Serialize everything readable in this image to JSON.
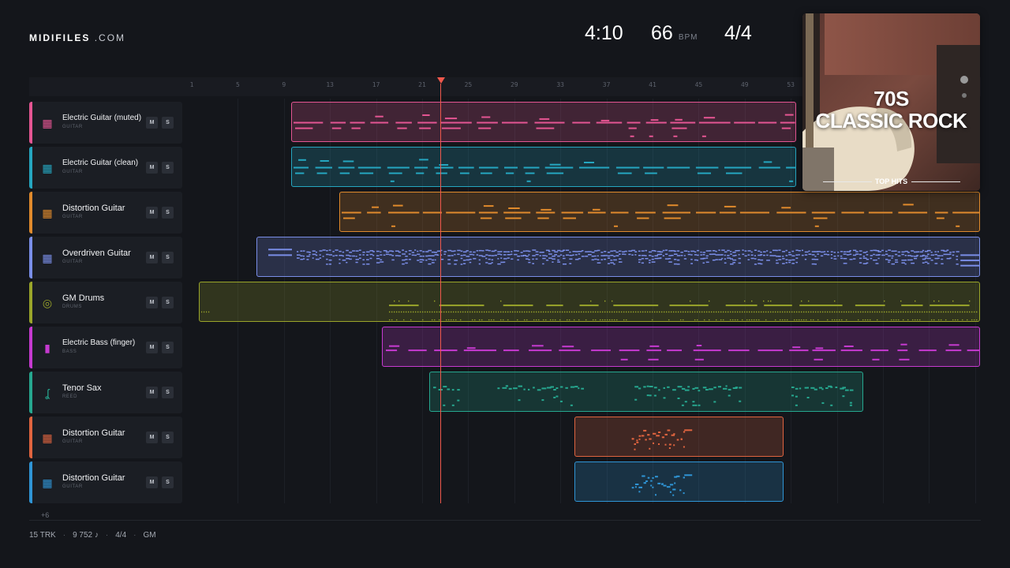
{
  "app": {
    "logo_bold": "MIDIFILES",
    "logo_suffix": ".COM"
  },
  "transport": {
    "time": "4:10",
    "tempo": "66",
    "tempo_unit": "BPM",
    "signature": "4/4"
  },
  "ruler": {
    "bars": [
      "1",
      "5",
      "9",
      "13",
      "17",
      "21",
      "25",
      "29",
      "33",
      "37",
      "41",
      "45",
      "49",
      "53"
    ]
  },
  "playhead_bar": 22.3,
  "tracks": [
    {
      "name": "Electric Guitar (muted)",
      "category": "GUITAR",
      "icon": "guitar-icon",
      "glyph": "▦",
      "color": "#e45592",
      "mute": "M",
      "solo": "S",
      "clip_start_bar": 9.6,
      "clip_end_bar": 53.5,
      "pattern": "riff"
    },
    {
      "name": "Electric Guitar (clean)",
      "category": "GUITAR",
      "icon": "guitar-icon",
      "glyph": "▦",
      "color": "#25a6c0",
      "mute": "M",
      "solo": "S",
      "clip_start_bar": 9.6,
      "clip_end_bar": 53.5,
      "pattern": "riff"
    },
    {
      "name": "Distortion Guitar",
      "category": "GUITAR",
      "icon": "guitar-icon",
      "glyph": "▦",
      "color": "#e08a2c",
      "mute": "M",
      "solo": "S",
      "clip_start_bar": 13.8,
      "clip_end_bar": 69.5,
      "pattern": "riff"
    },
    {
      "name": "Overdriven Guitar",
      "category": "GUITAR",
      "icon": "guitar-icon",
      "glyph": "▦",
      "color": "#7a8ee8",
      "mute": "M",
      "solo": "S",
      "clip_start_bar": 6.6,
      "clip_end_bar": 69.5,
      "pattern": "dense"
    },
    {
      "name": "GM Drums",
      "category": "DRUMS",
      "icon": "drum-icon",
      "glyph": "◎",
      "color": "#9aa52a",
      "mute": "M",
      "solo": "S",
      "clip_start_bar": 1.6,
      "clip_end_bar": 69.5,
      "pattern": "drums"
    },
    {
      "name": "Electric Bass (finger)",
      "category": "BASS",
      "icon": "bass-icon",
      "glyph": "▮",
      "color": "#c63ad0",
      "mute": "M",
      "solo": "S",
      "clip_start_bar": 17.5,
      "clip_end_bar": 69.5,
      "pattern": "bass"
    },
    {
      "name": "Tenor Sax",
      "category": "REED",
      "icon": "sax-icon",
      "glyph": "ʆ",
      "color": "#26a78f",
      "mute": "M",
      "solo": "S",
      "clip_start_bar": 21.6,
      "clip_end_bar": 59.3,
      "pattern": "sax"
    },
    {
      "name": "Distortion Guitar",
      "category": "GUITAR",
      "icon": "guitar-icon",
      "glyph": "▦",
      "color": "#e0643f",
      "mute": "M",
      "solo": "S",
      "clip_start_bar": 34.2,
      "clip_end_bar": 52.4,
      "pattern": "solo"
    },
    {
      "name": "Distortion Guitar",
      "category": "GUITAR",
      "icon": "guitar-icon",
      "glyph": "▦",
      "color": "#2f95d6",
      "mute": "M",
      "solo": "S",
      "clip_start_bar": 34.2,
      "clip_end_bar": 52.4,
      "pattern": "solo"
    }
  ],
  "more_tracks": "+6",
  "footer": {
    "tracks": "15 TRK",
    "notes": "9 752 ♪",
    "signature": "4/4",
    "standard": "GM"
  },
  "cover": {
    "title_line1": "70S",
    "title_line2": "CLASSIC ROCK",
    "subtitle": "TOP HITS"
  }
}
